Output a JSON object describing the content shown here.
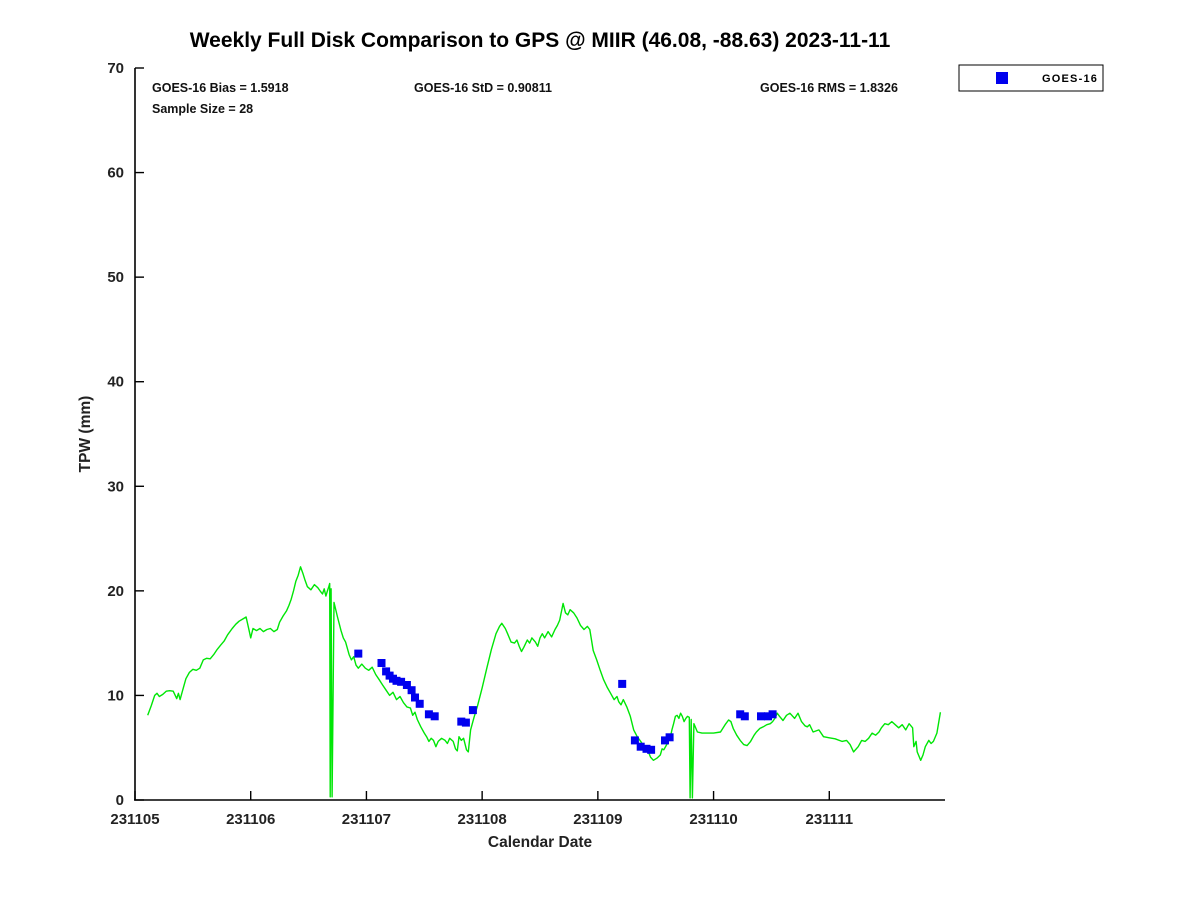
{
  "title": "Weekly Full Disk Comparison to GPS @ MIIR (46.08, -88.63) 2023-11-11",
  "annotations": {
    "bias": "GOES-16 Bias = 1.5918",
    "std": "GOES-16 StD = 0.90811",
    "rms": "GOES-16 RMS = 1.8326",
    "sample_size": "Sample Size = 28"
  },
  "legend": {
    "position": "top-right",
    "entries": [
      {
        "label": "GOES-16",
        "marker": "square",
        "color": "#0000EE"
      }
    ]
  },
  "colors": {
    "gps_line": "#00E606",
    "goes_marker": "#0000EE",
    "axis": "#000000",
    "background": "#FFFFFF",
    "text": "#000000"
  },
  "chart_data": {
    "type": "line",
    "title": "Weekly Full Disk Comparison to GPS @ MIIR (46.08, -88.63) 2023-11-11",
    "xlabel": "Calendar Date",
    "ylabel": "TPW (mm)",
    "x_unit": "days since 231105 (fractional)",
    "xlim": [
      0,
      7
    ],
    "ylim": [
      0,
      70
    ],
    "grid": false,
    "x_tick_labels": [
      "231105",
      "231106",
      "231107",
      "231108",
      "231109",
      "231110",
      "231111"
    ],
    "x_tick_positions": [
      0,
      1,
      2,
      3,
      4,
      5,
      6
    ],
    "y_ticks": [
      0,
      10,
      20,
      30,
      40,
      50,
      60,
      70
    ],
    "series": [
      {
        "name": "GPS",
        "type": "line",
        "color": "#00E606",
        "x": [
          0.11,
          0.14,
          0.17,
          0.19,
          0.21,
          0.24,
          0.27,
          0.3,
          0.33,
          0.36,
          0.375,
          0.39,
          0.41,
          0.44,
          0.47,
          0.5,
          0.53,
          0.56,
          0.59,
          0.62,
          0.65,
          0.68,
          0.71,
          0.74,
          0.77,
          0.8,
          0.84,
          0.87,
          0.9,
          0.93,
          0.96,
          0.99,
          1.0,
          1.02,
          1.05,
          1.08,
          1.11,
          1.14,
          1.17,
          1.2,
          1.23,
          1.25,
          1.28,
          1.31,
          1.33,
          1.35,
          1.37,
          1.39,
          1.41,
          1.43,
          1.45,
          1.47,
          1.49,
          1.52,
          1.55,
          1.58,
          1.6,
          1.62,
          1.635,
          1.65,
          1.66,
          1.675,
          1.683,
          1.687,
          1.695,
          1.703,
          1.72,
          1.75,
          1.78,
          1.8,
          1.82,
          1.85,
          1.87,
          1.89,
          1.91,
          1.93,
          1.96,
          1.99,
          2.02,
          2.05,
          2.08,
          2.11,
          2.14,
          2.17,
          2.2,
          2.23,
          2.26,
          2.29,
          2.32,
          2.35,
          2.38,
          2.4,
          2.42,
          2.44,
          2.47,
          2.5,
          2.52,
          2.54,
          2.56,
          2.58,
          2.6,
          2.62,
          2.65,
          2.68,
          2.7,
          2.72,
          2.75,
          2.77,
          2.785,
          2.8,
          2.82,
          2.84,
          2.865,
          2.88,
          2.9,
          2.93,
          2.96,
          3.0,
          3.04,
          3.08,
          3.12,
          3.15,
          3.17,
          3.2,
          3.22,
          3.25,
          3.28,
          3.3,
          3.32,
          3.34,
          3.36,
          3.39,
          3.41,
          3.43,
          3.46,
          3.48,
          3.5,
          3.52,
          3.54,
          3.57,
          3.6,
          3.63,
          3.65,
          3.67,
          3.7,
          3.72,
          3.74,
          3.76,
          3.79,
          3.82,
          3.85,
          3.88,
          3.91,
          3.93,
          3.96,
          3.99,
          4.02,
          4.05,
          4.08,
          4.11,
          4.14,
          4.165,
          4.18,
          4.2,
          4.22,
          4.25,
          4.28,
          4.31,
          4.34,
          4.37,
          4.4,
          4.43,
          4.455,
          4.48,
          4.51,
          4.54,
          4.555,
          4.57,
          4.6,
          4.615,
          4.625,
          4.64,
          4.655,
          4.67,
          4.685,
          4.7,
          4.715,
          4.73,
          4.745,
          4.76,
          4.775,
          4.79,
          4.797,
          4.807,
          4.817,
          4.83,
          4.86,
          4.9,
          4.94,
          5.0,
          5.06,
          5.1,
          5.13,
          5.15,
          5.17,
          5.2,
          5.23,
          5.26,
          5.29,
          5.32,
          5.35,
          5.37,
          5.4,
          5.43,
          5.46,
          5.49,
          5.51,
          5.53,
          5.55,
          5.57,
          5.6,
          5.63,
          5.66,
          5.7,
          5.73,
          5.76,
          5.79,
          5.81,
          5.83,
          5.86,
          5.91,
          5.95,
          6.0,
          6.05,
          6.11,
          6.15,
          6.18,
          6.21,
          6.25,
          6.28,
          6.31,
          6.34,
          6.37,
          6.4,
          6.43,
          6.45,
          6.48,
          6.51,
          6.54,
          6.57,
          6.6,
          6.63,
          6.66,
          6.69,
          6.72,
          6.73,
          6.75,
          6.76,
          6.79,
          6.81,
          6.83,
          6.86,
          6.88,
          6.9,
          6.93,
          6.96
        ],
        "y": [
          8.1,
          9.0,
          10.0,
          10.2,
          9.9,
          10.1,
          10.4,
          10.45,
          10.4,
          9.7,
          10.2,
          9.6,
          10.4,
          11.6,
          12.2,
          12.5,
          12.4,
          12.6,
          13.4,
          13.55,
          13.5,
          13.9,
          14.4,
          14.8,
          15.2,
          15.8,
          16.4,
          16.8,
          17.1,
          17.3,
          17.5,
          16.0,
          15.5,
          16.4,
          16.2,
          16.4,
          16.1,
          16.3,
          16.4,
          16.1,
          16.3,
          17.0,
          17.6,
          18.1,
          18.6,
          19.2,
          20.0,
          20.9,
          21.5,
          22.3,
          21.7,
          21.0,
          20.4,
          20.1,
          20.6,
          20.3,
          20.0,
          19.7,
          20.2,
          19.5,
          19.9,
          20.4,
          20.7,
          0.3,
          20.2,
          0.3,
          18.9,
          17.5,
          16.2,
          15.5,
          15.1,
          13.9,
          13.4,
          13.7,
          12.9,
          12.6,
          13.0,
          12.6,
          12.4,
          12.7,
          12.0,
          11.5,
          11.0,
          10.5,
          10.0,
          10.3,
          9.6,
          9.9,
          9.3,
          8.9,
          8.8,
          8.1,
          8.4,
          7.7,
          7.0,
          6.4,
          6.05,
          5.6,
          5.9,
          5.7,
          5.1,
          5.6,
          5.9,
          5.7,
          5.4,
          5.9,
          5.6,
          4.9,
          4.7,
          6.05,
          5.7,
          5.9,
          4.8,
          4.6,
          6.7,
          7.9,
          9.0,
          10.7,
          12.6,
          14.4,
          15.9,
          16.6,
          16.9,
          16.4,
          15.9,
          15.1,
          15.0,
          15.3,
          14.7,
          14.2,
          14.6,
          15.3,
          15.0,
          15.5,
          15.1,
          14.7,
          15.5,
          15.9,
          15.5,
          16.1,
          15.6,
          16.3,
          16.7,
          17.2,
          18.8,
          17.9,
          17.7,
          18.2,
          17.9,
          17.4,
          16.7,
          16.3,
          16.6,
          16.3,
          14.3,
          13.4,
          12.4,
          11.5,
          10.8,
          10.2,
          9.6,
          9.9,
          9.4,
          9.1,
          9.6,
          8.9,
          8.0,
          6.7,
          6.05,
          5.6,
          5.1,
          4.8,
          4.1,
          3.8,
          4.0,
          4.3,
          4.9,
          4.8,
          5.4,
          6.05,
          5.9,
          6.7,
          7.3,
          8.0,
          8.1,
          7.8,
          8.3,
          8.0,
          7.5,
          7.8,
          8.0,
          7.9,
          0.2,
          7.7,
          0.2,
          7.3,
          6.5,
          6.4,
          6.4,
          6.4,
          6.5,
          7.2,
          7.65,
          7.5,
          6.85,
          6.2,
          5.7,
          5.3,
          5.2,
          5.6,
          6.2,
          6.5,
          6.85,
          7.0,
          7.2,
          7.3,
          7.5,
          7.8,
          8.3,
          8.0,
          7.6,
          8.1,
          8.3,
          7.8,
          8.3,
          7.5,
          7.1,
          7.0,
          7.2,
          6.5,
          6.7,
          6.05,
          5.95,
          5.85,
          5.6,
          5.7,
          5.3,
          4.6,
          5.1,
          5.7,
          5.6,
          5.9,
          6.4,
          6.2,
          6.5,
          6.9,
          7.3,
          7.2,
          7.5,
          7.2,
          6.9,
          7.2,
          6.7,
          7.3,
          6.9,
          5.1,
          5.6,
          4.6,
          3.8,
          4.3,
          5.1,
          5.7,
          5.4,
          5.6,
          6.4,
          8.4
        ]
      },
      {
        "name": "GOES-16",
        "type": "scatter",
        "marker": "square",
        "color": "#0000EE",
        "x": [
          1.93,
          2.13,
          2.17,
          2.2,
          2.23,
          2.26,
          2.3,
          2.35,
          2.39,
          2.42,
          2.46,
          2.54,
          2.59,
          2.82,
          2.86,
          2.92,
          4.21,
          4.32,
          4.37,
          4.42,
          4.46,
          4.58,
          4.62,
          5.23,
          5.27,
          5.41,
          5.47,
          5.51
        ],
        "y": [
          14.0,
          13.1,
          12.3,
          11.9,
          11.6,
          11.4,
          11.3,
          11.0,
          10.5,
          9.8,
          9.2,
          8.2,
          8.0,
          7.5,
          7.4,
          8.6,
          11.1,
          5.7,
          5.1,
          4.9,
          4.8,
          5.7,
          6.0,
          8.2,
          8.0,
          8.0,
          8.0,
          8.2
        ]
      }
    ]
  }
}
